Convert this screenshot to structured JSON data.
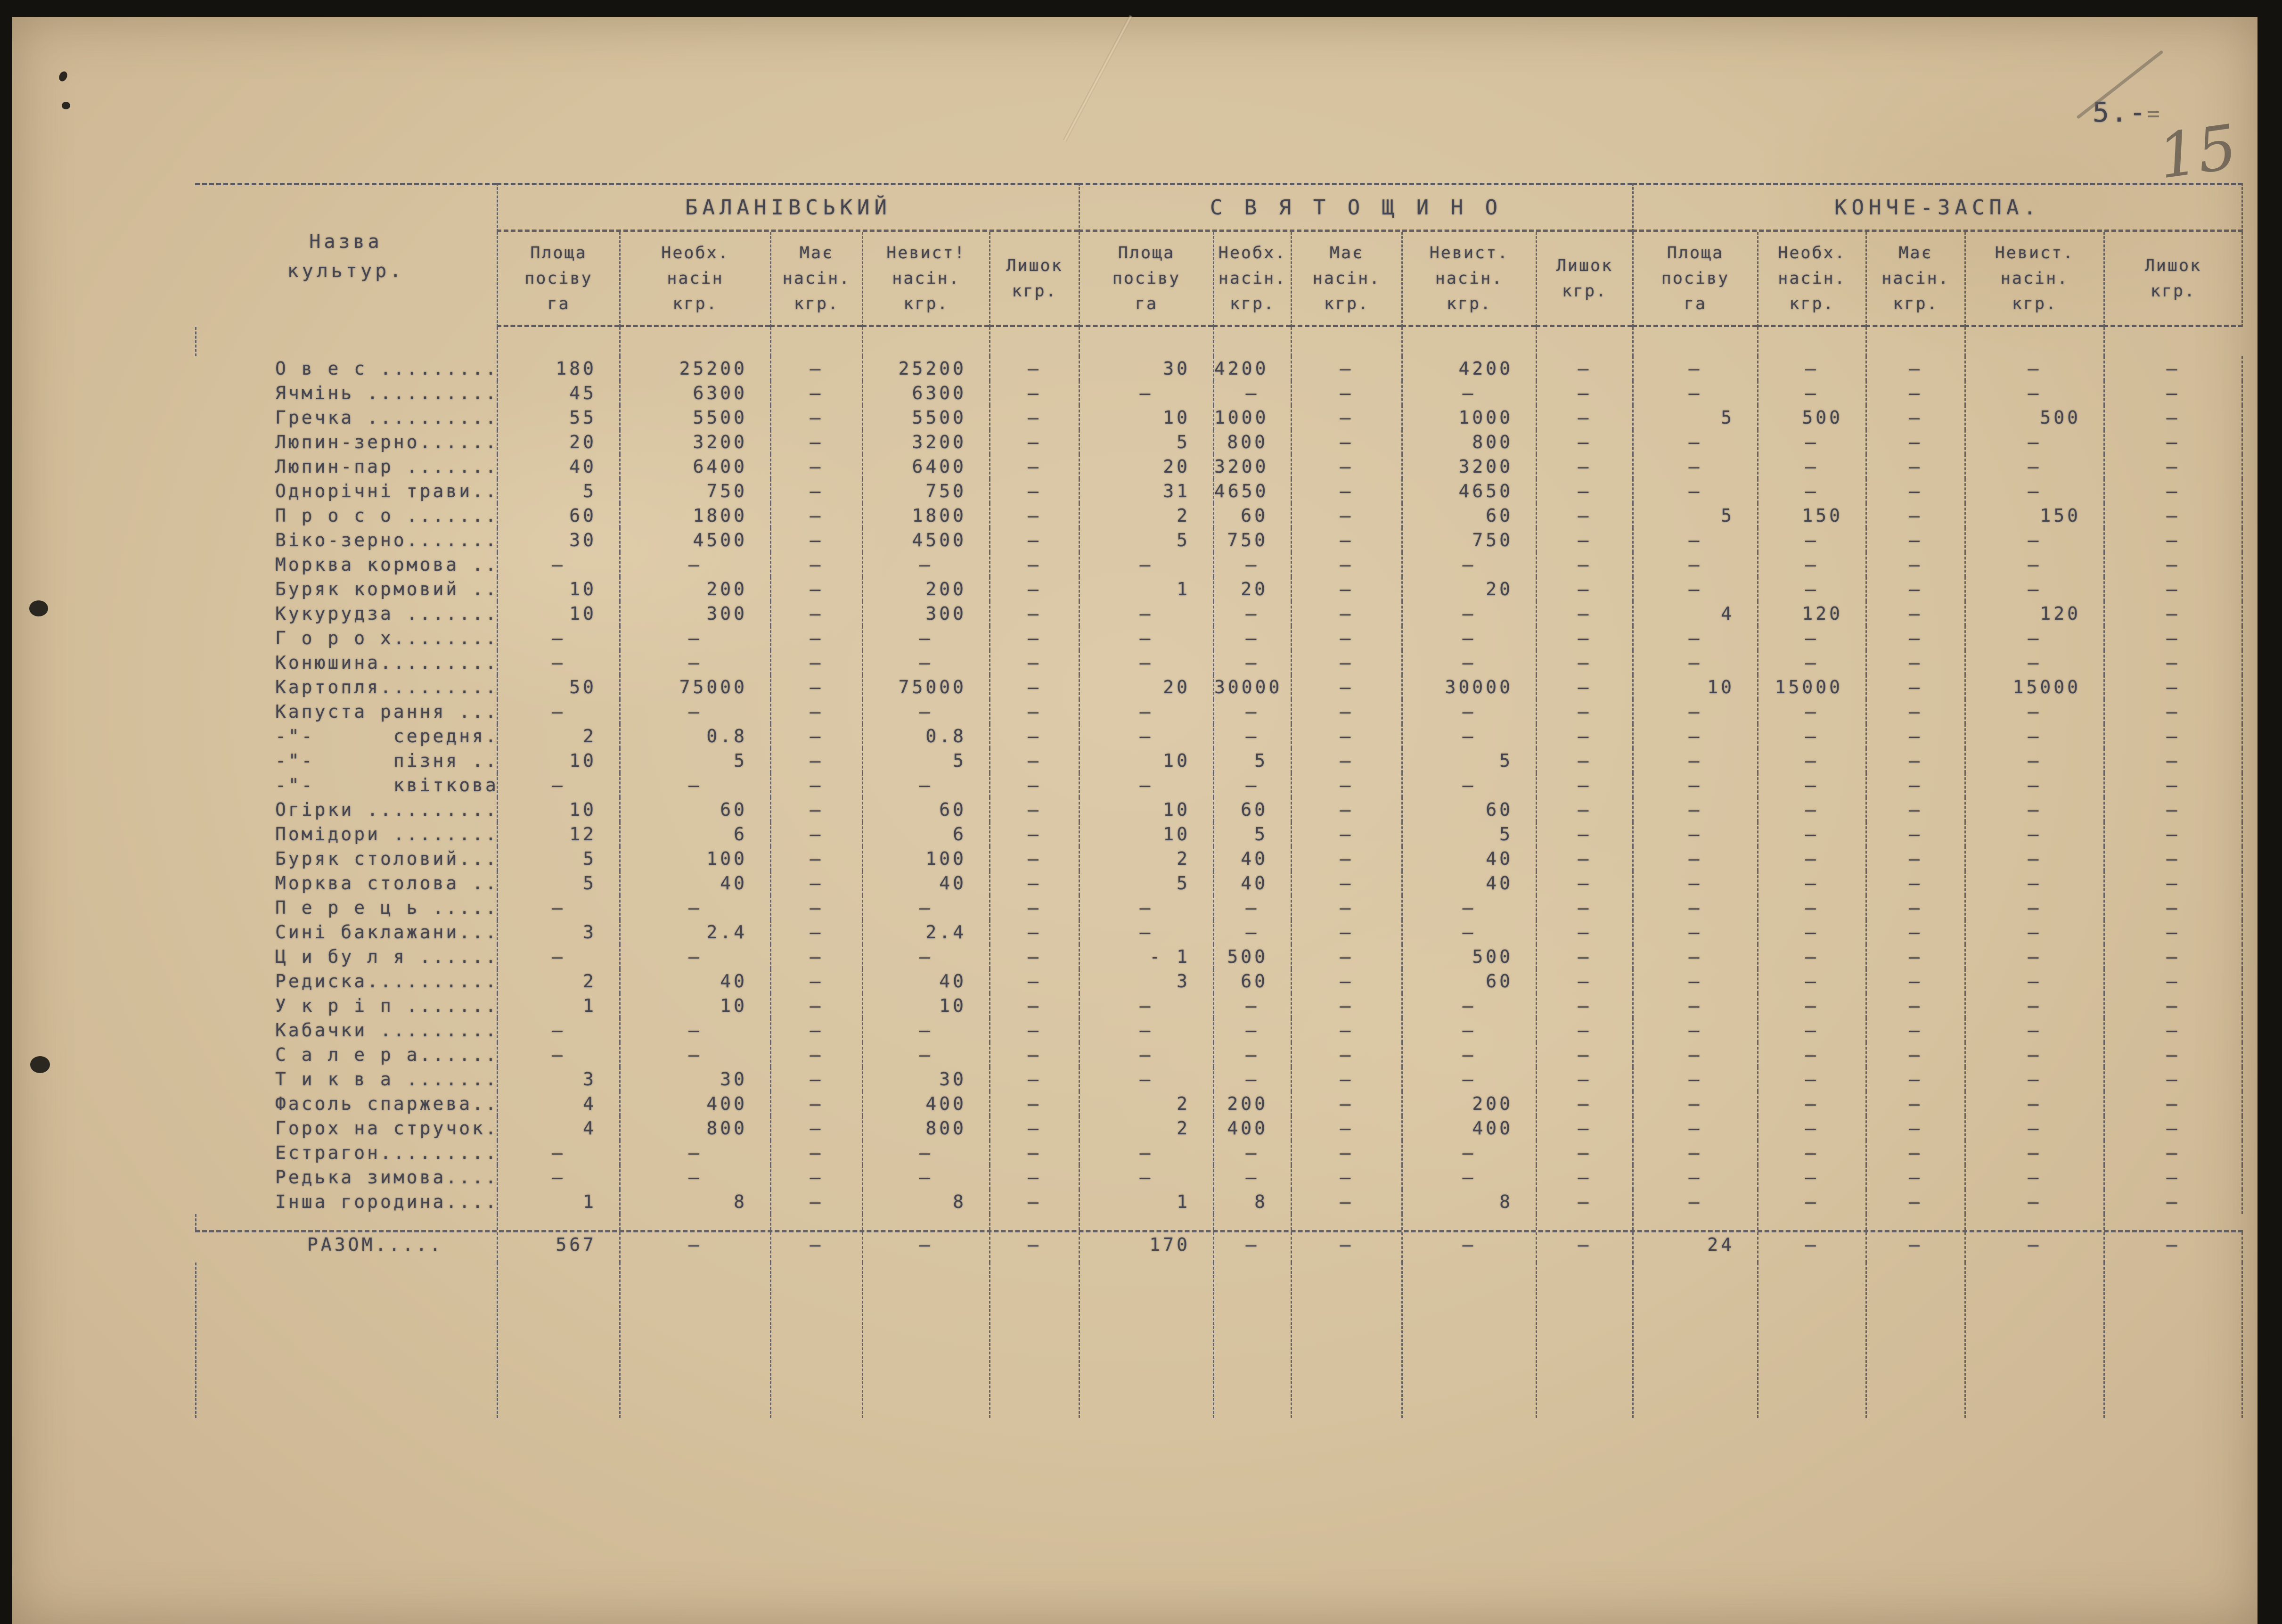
{
  "page": {
    "page_number_typed": "5.-",
    "pencil_equals": "=",
    "page_number_handwritten": "15"
  },
  "table": {
    "name_header_line1": "Назва",
    "name_header_line2": "культур.",
    "groups": [
      {
        "title": "БАЛАНІВСЬКИЙ",
        "cols": [
          [
            "Площа",
            "посіву",
            "га"
          ],
          [
            "Необх.",
            "насін",
            "кгр."
          ],
          [
            "Має",
            "насін.",
            "кгр."
          ],
          [
            "Невист!",
            "насін.",
            "кгр."
          ],
          [
            "Лишок",
            "кгр.",
            ""
          ]
        ]
      },
      {
        "title": "С В Я Т О Щ И Н О",
        "cols": [
          [
            "Площа",
            "посіву",
            "га"
          ],
          [
            "Необх.",
            "насін.",
            "кгр."
          ],
          [
            "Має",
            "насін.",
            "кгр."
          ],
          [
            "Невист.",
            "насін.",
            "кгр."
          ],
          [
            "Лишок",
            "кгр.",
            ""
          ]
        ]
      },
      {
        "title": "КОНЧЕ-ЗАСПА.",
        "cols": [
          [
            "Площа",
            "посіву",
            "га"
          ],
          [
            "Необх.",
            "насін.",
            "кгр."
          ],
          [
            "Має",
            "насін.",
            "кгр."
          ],
          [
            "Невист.",
            "насін.",
            "кгр."
          ],
          [
            "Лишок",
            "кгр.",
            ""
          ]
        ]
      }
    ],
    "rows": [
      {
        "name": "О в е с ..........",
        "values": [
          "180",
          "25200",
          "–",
          "25200",
          "–",
          "30",
          "4200",
          "–",
          "4200",
          "–",
          "–",
          "–",
          "–",
          "–",
          "–"
        ]
      },
      {
        "name": "Ячмінь ...........",
        "values": [
          "45",
          "6300",
          "–",
          "6300",
          "–",
          "–",
          "–",
          "–",
          "–",
          "–",
          "–",
          "–",
          "–",
          "–",
          "–"
        ]
      },
      {
        "name": "Гречка ...........",
        "values": [
          "55",
          "5500",
          "–",
          "5500",
          "–",
          "10",
          "1000",
          "–",
          "1000",
          "–",
          "5",
          "500",
          "–",
          "500",
          "–"
        ]
      },
      {
        "name": "Люпин-зерно.......",
        "values": [
          "20",
          "3200",
          "–",
          "3200",
          "–",
          "5",
          "800",
          "–",
          "800",
          "–",
          "–",
          "–",
          "–",
          "–",
          "–"
        ]
      },
      {
        "name": "Люпин-пар ........",
        "values": [
          "40",
          "6400",
          "–",
          "6400",
          "–",
          "20",
          "3200",
          "–",
          "3200",
          "–",
          "–",
          "–",
          "–",
          "–",
          "–"
        ]
      },
      {
        "name": "Однорічні трави...",
        "values": [
          "5",
          "750",
          "–",
          "750",
          "–",
          "31",
          "4650",
          "–",
          "4650",
          "–",
          "–",
          "–",
          "–",
          "–",
          "–"
        ]
      },
      {
        "name": "П р о с о ........",
        "values": [
          "60",
          "1800",
          "–",
          "1800",
          "–",
          "2",
          "60",
          "–",
          "60",
          "–",
          "5",
          "150",
          "–",
          "150",
          "–"
        ]
      },
      {
        "name": "Віко-зерно........",
        "values": [
          "30",
          "4500",
          "–",
          "4500",
          "–",
          "5",
          "750",
          "–",
          "750",
          "–",
          "–",
          "–",
          "–",
          "–",
          "–"
        ]
      },
      {
        "name": "Морква кормова ...",
        "values": [
          "–",
          "–",
          "–",
          "–",
          "–",
          "–",
          "–",
          "–",
          "–",
          "–",
          "–",
          "–",
          "–",
          "–",
          "–"
        ]
      },
      {
        "name": "Буряк кормовий ...",
        "values": [
          "10",
          "200",
          "–",
          "200",
          "–",
          "1",
          "20",
          "–",
          "20",
          "–",
          "–",
          "–",
          "–",
          "–",
          "–"
        ]
      },
      {
        "name": "Кукурудза ........",
        "values": [
          "10",
          "300",
          "–",
          "300",
          "–",
          "–",
          "–",
          "–",
          "–",
          "–",
          "4",
          "120",
          "–",
          "120",
          "–"
        ]
      },
      {
        "name": "Г о р о х.........",
        "values": [
          "–",
          "–",
          "–",
          "–",
          "–",
          "–",
          "–",
          "–",
          "–",
          "–",
          "–",
          "–",
          "–",
          "–",
          "–"
        ]
      },
      {
        "name": "Конюшина..........",
        "values": [
          "–",
          "–",
          "–",
          "–",
          "–",
          "–",
          "–",
          "–",
          "–",
          "–",
          "–",
          "–",
          "–",
          "–",
          "–"
        ]
      },
      {
        "name": "Картопля..........",
        "values": [
          "50",
          "75000",
          "–",
          "75000",
          "–",
          "20",
          "30000",
          "–",
          "30000",
          "–",
          "10",
          "15000",
          "–",
          "15000",
          "–"
        ]
      },
      {
        "name": "Капуста рання ....",
        "values": [
          "–",
          "–",
          "–",
          "–",
          "–",
          "–",
          "–",
          "–",
          "–",
          "–",
          "–",
          "–",
          "–",
          "–",
          "–"
        ]
      },
      {
        "name": "-\"-      середня...",
        "values": [
          "2",
          "0.8",
          "–",
          "0.8",
          "–",
          "–",
          "–",
          "–",
          "–",
          "–",
          "–",
          "–",
          "–",
          "–",
          "–"
        ]
      },
      {
        "name": "-\"-      пізня ....",
        "values": [
          "10",
          "5",
          "–",
          "5",
          "–",
          "10",
          "5",
          "–",
          "5",
          "–",
          "–",
          "–",
          "–",
          "–",
          "–"
        ]
      },
      {
        "name": "-\"-      квіткова..",
        "values": [
          "–",
          "–",
          "–",
          "–",
          "–",
          "–",
          "–",
          "–",
          "–",
          "–",
          "–",
          "–",
          "–",
          "–",
          "–"
        ]
      },
      {
        "name": "Огірки ...........",
        "values": [
          "10",
          "60",
          "–",
          "60",
          "–",
          "10",
          "60",
          "–",
          "60",
          "–",
          "–",
          "–",
          "–",
          "–",
          "–"
        ]
      },
      {
        "name": "Помідори .........",
        "values": [
          "12",
          "6",
          "–",
          "6",
          "–",
          "10",
          "5",
          "–",
          "5",
          "–",
          "–",
          "–",
          "–",
          "–",
          "–"
        ]
      },
      {
        "name": "Буряк столовий.....",
        "values": [
          "5",
          "100",
          "–",
          "100",
          "–",
          "2",
          "40",
          "–",
          "40",
          "–",
          "–",
          "–",
          "–",
          "–",
          "–"
        ]
      },
      {
        "name": "Морква столова .....",
        "values": [
          "5",
          "40",
          "–",
          "40",
          "–",
          "5",
          "40",
          "–",
          "40",
          "–",
          "–",
          "–",
          "–",
          "–",
          "–"
        ]
      },
      {
        "name": "П е р е ц ь ......",
        "values": [
          "–",
          "–",
          "–",
          "–",
          "–",
          "–",
          "–",
          "–",
          "–",
          "–",
          "–",
          "–",
          "–",
          "–",
          "–"
        ]
      },
      {
        "name": "Сині баклажани....",
        "values": [
          "3",
          "2.4",
          "–",
          "2.4",
          "–",
          "–",
          "–",
          "–",
          "–",
          "–",
          "–",
          "–",
          "–",
          "–",
          "–"
        ]
      },
      {
        "name": "Ц и бу л я .......",
        "values": [
          "–",
          "–",
          "–",
          "–",
          "–",
          "- 1",
          "500",
          "–",
          "500",
          "–",
          "–",
          "–",
          "–",
          "–",
          "–"
        ]
      },
      {
        "name": "Редиска...........",
        "values": [
          "2",
          "40",
          "–",
          "40",
          "–",
          "3",
          "60",
          "–",
          "60",
          "–",
          "–",
          "–",
          "–",
          "–",
          "–"
        ]
      },
      {
        "name": "У к р і п ........",
        "values": [
          "1",
          "10",
          "–",
          "10",
          "–",
          "–",
          "–",
          "–",
          "–",
          "–",
          "–",
          "–",
          "–",
          "–",
          "–"
        ]
      },
      {
        "name": "Кабачки ..........",
        "values": [
          "–",
          "–",
          "–",
          "–",
          "–",
          "–",
          "–",
          "–",
          "–",
          "–",
          "–",
          "–",
          "–",
          "–",
          "–"
        ]
      },
      {
        "name": "С а л е р а.......",
        "values": [
          "–",
          "–",
          "–",
          "–",
          "–",
          "–",
          "–",
          "–",
          "–",
          "–",
          "–",
          "–",
          "–",
          "–",
          "–"
        ]
      },
      {
        "name": "Т и к в а ........",
        "values": [
          "3",
          "30",
          "–",
          "30",
          "–",
          "–",
          "–",
          "–",
          "–",
          "–",
          "–",
          "–",
          "–",
          "–",
          "–"
        ]
      },
      {
        "name": "Фасоль спаржева...",
        "values": [
          "4",
          "400",
          "–",
          "400",
          "–",
          "2",
          "200",
          "–",
          "200",
          "–",
          "–",
          "–",
          "–",
          "–",
          "–"
        ]
      },
      {
        "name": "Горох на стручок..",
        "values": [
          "4",
          "800",
          "–",
          "800",
          "–",
          "2",
          "400",
          "–",
          "400",
          "–",
          "–",
          "–",
          "–",
          "–",
          "–"
        ]
      },
      {
        "name": "Естрагон..........",
        "values": [
          "–",
          "–",
          "–",
          "–",
          "–",
          "–",
          "–",
          "–",
          "–",
          "–",
          "–",
          "–",
          "–",
          "–",
          "–"
        ]
      },
      {
        "name": "Редька зимова.....",
        "values": [
          "–",
          "–",
          "–",
          "–",
          "–",
          "–",
          "–",
          "–",
          "–",
          "–",
          "–",
          "–",
          "–",
          "–",
          "–"
        ]
      },
      {
        "name": "Інша городина.....",
        "values": [
          "1",
          "8",
          "–",
          "8",
          "–",
          "1",
          "8",
          "–",
          "8",
          "–",
          "–",
          "–",
          "–",
          "–",
          "–"
        ]
      }
    ],
    "totals": {
      "label": "РАЗОМ.....",
      "values": [
        "567",
        "–",
        "–",
        "–",
        "–",
        "170",
        "–",
        "–",
        "–",
        "–",
        "24",
        "–",
        "–",
        "–",
        "–"
      ]
    }
  }
}
